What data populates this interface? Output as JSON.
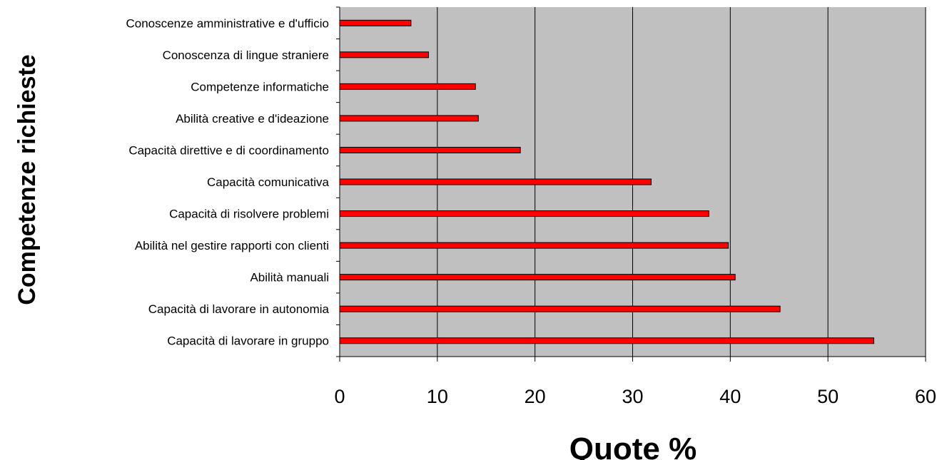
{
  "chart_data": {
    "type": "bar",
    "orientation": "horizontal",
    "categories": [
      "Conoscenze amministrative e d'ufficio",
      "Conoscenza di lingue straniere",
      "Competenze informatiche",
      "Abilità creative e d'ideazione",
      "Capacità direttive e di coordinamento",
      "Capacità comunicativa",
      "Capacità di risolvere problemi",
      "Abilità nel gestire rapporti con clienti",
      "Abilità manuali",
      "Capacità di lavorare in autonomia",
      "Capacità di lavorare in gruppo"
    ],
    "values": [
      7.3,
      9.1,
      13.9,
      14.2,
      18.5,
      31.9,
      37.8,
      39.8,
      40.5,
      45.1,
      54.7
    ],
    "xlabel": "Quote %",
    "ylabel": "Competenze richieste",
    "xlim": [
      0,
      60
    ],
    "xticks": [
      "0",
      "10",
      "20",
      "30",
      "40",
      "50",
      "60"
    ],
    "grid": "vertical",
    "legend": "none",
    "colors": {
      "bar": "#ff0000",
      "bar_border": "#000000",
      "plot_background": "#c0c0c0",
      "gridline": "#000000"
    }
  }
}
